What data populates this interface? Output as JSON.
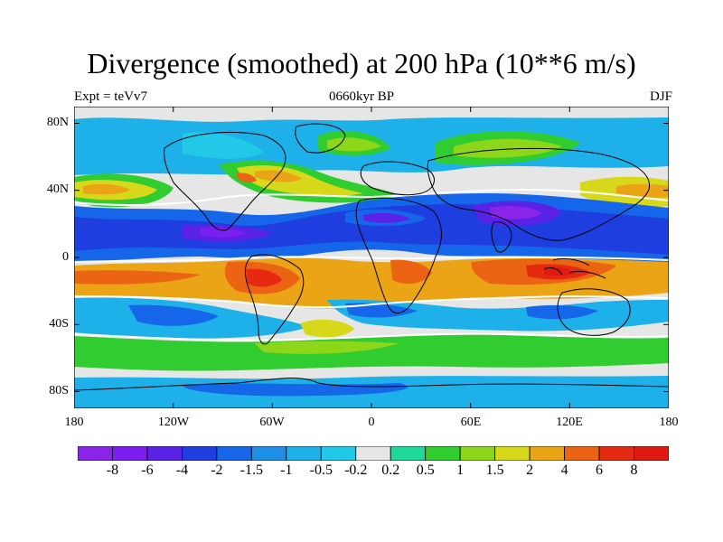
{
  "title": "Divergence (smoothed) at 200 hPa (10**6 m/s)",
  "subtitle_left": "Expt = teVv7",
  "subtitle_center": "0660kyr BP",
  "subtitle_right": "DJF",
  "lat_ticks": [
    "80N",
    "40N",
    "0",
    "40S",
    "80S"
  ],
  "lon_ticks": [
    "180",
    "120W",
    "60W",
    "0",
    "60E",
    "120E",
    "180"
  ],
  "colorbar": {
    "labels": [
      "-8",
      "-6",
      "-4",
      "-2",
      "-1.5",
      "-1",
      "-0.5",
      "-0.2",
      "0.2",
      "0.5",
      "1",
      "1.5",
      "2",
      "4",
      "6",
      "8"
    ],
    "colors": [
      "#8a24e8",
      "#7b1ef0",
      "#5a22e6",
      "#1f3ee0",
      "#1566e8",
      "#1e8fe6",
      "#1eb0e8",
      "#22c8e8",
      "#e6e6e6",
      "#1ed99a",
      "#30cc30",
      "#8ed61a",
      "#d8d81a",
      "#eaa416",
      "#ea6414",
      "#e62a12",
      "#e01a10"
    ],
    "contour_color": "#ffffff"
  },
  "map_data": {
    "projection": "cylindrical-equidistant",
    "lon_range": [
      -180,
      180
    ],
    "lat_range": [
      -90,
      90
    ],
    "field": "divergence (smoothed), 200 hPa, DJF"
  }
}
